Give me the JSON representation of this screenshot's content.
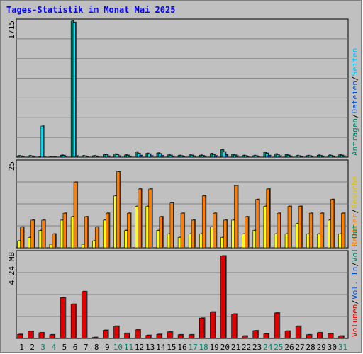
{
  "title": "Tages-Statistik im Monat Mai 2025",
  "chart_data": [
    {
      "type": "bar",
      "panel": "top",
      "ymax_label": "1715",
      "ylim": [
        0,
        1715
      ],
      "categories": [
        "1",
        "2",
        "3",
        "4",
        "5",
        "6",
        "7",
        "8",
        "9",
        "10",
        "11",
        "12",
        "13",
        "14",
        "15",
        "16",
        "17",
        "18",
        "19",
        "20",
        "21",
        "22",
        "23",
        "24",
        "25",
        "26",
        "27",
        "28",
        "29",
        "30",
        "31"
      ],
      "weekend_days": [
        "3",
        "4",
        "10",
        "11",
        "17",
        "18",
        "24",
        "25",
        "31"
      ],
      "series": [
        {
          "name": "Anfragen",
          "color": "#00806b",
          "values": [
            18,
            18,
            8,
            8,
            25,
            1715,
            18,
            18,
            35,
            38,
            28,
            65,
            48,
            52,
            28,
            22,
            28,
            25,
            45,
            95,
            35,
            22,
            20,
            62,
            40,
            32,
            20,
            20,
            25,
            25,
            30
          ]
        },
        {
          "name": "Dateien",
          "color": "#00e5ff",
          "values": [
            12,
            12,
            390,
            6,
            20,
            1690,
            12,
            12,
            28,
            30,
            22,
            45,
            38,
            42,
            22,
            16,
            22,
            18,
            32,
            65,
            25,
            16,
            15,
            48,
            28,
            22,
            15,
            15,
            18,
            18,
            22
          ]
        },
        {
          "name": "Seiten",
          "color": "#0050d0",
          "values": [
            6,
            6,
            4,
            4,
            10,
            15,
            6,
            8,
            12,
            14,
            10,
            20,
            16,
            18,
            10,
            8,
            12,
            10,
            16,
            30,
            12,
            8,
            8,
            20,
            14,
            10,
            8,
            8,
            10,
            10,
            12
          ]
        }
      ]
    },
    {
      "type": "bar",
      "panel": "middle",
      "ymax_label": "25",
      "ylim": [
        0,
        25
      ],
      "series": [
        {
          "name": "Besuche",
          "color": "#ffff00",
          "values": [
            2,
            3,
            5,
            1,
            8,
            9,
            1,
            2,
            8,
            15,
            5,
            12,
            12,
            5,
            4,
            3,
            4,
            4,
            6,
            3,
            8,
            4,
            5,
            12,
            4,
            4,
            7,
            4,
            4,
            8,
            4
          ]
        },
        {
          "name": "Rechner",
          "color": "#ff8000",
          "values": [
            6,
            8,
            8,
            4,
            10,
            19,
            9,
            6,
            10,
            22,
            10,
            17,
            17,
            9,
            13,
            10,
            8,
            15,
            10,
            8,
            18,
            9,
            14,
            17,
            10,
            12,
            12,
            10,
            10,
            14,
            10
          ]
        }
      ]
    },
    {
      "type": "bar",
      "panel": "bottom",
      "ymax_label": "4.24 MB",
      "ylim": [
        0,
        4.24
      ],
      "series": [
        {
          "name": "Volumen",
          "color": "#e00000",
          "values": [
            0.2,
            0.35,
            0.28,
            0.18,
            2.0,
            1.68,
            2.3,
            0.05,
            0.4,
            0.6,
            0.25,
            0.42,
            0.15,
            0.2,
            0.32,
            0.18,
            0.18,
            1.0,
            1.3,
            4.05,
            1.2,
            0.12,
            0.38,
            0.22,
            1.25,
            0.36,
            0.6,
            0.18,
            0.28,
            0.24,
            0.12
          ]
        }
      ]
    }
  ],
  "right_labels": {
    "top": [
      {
        "text": "Anfragen",
        "color": "#00806b"
      },
      {
        "text": "/",
        "color": "#000000"
      },
      {
        "text": "Dateien",
        "color": "#0050d0"
      },
      {
        "text": "/",
        "color": "#000000"
      },
      {
        "text": "Seiten",
        "color": "#00c8ff"
      }
    ],
    "middle": [
      {
        "text": "Rechner",
        "color": "#ff8000"
      },
      {
        "text": "/",
        "color": "#000000"
      },
      {
        "text": "Besuche",
        "color": "#e0c000"
      }
    ],
    "bottom": [
      {
        "text": "Volumen",
        "color": "#e00000"
      },
      {
        "text": "/",
        "color": "#000000"
      },
      {
        "text": "Vol. In",
        "color": "#0050d0"
      },
      {
        "text": "/",
        "color": "#000000"
      },
      {
        "text": "Vol. Out",
        "color": "#00806b"
      }
    ]
  },
  "colors": {
    "background": "#c0c0c0",
    "title": "#0000ff",
    "weekend_label": "#00806b",
    "weekday_label": "#000000",
    "grid": "#808080"
  }
}
